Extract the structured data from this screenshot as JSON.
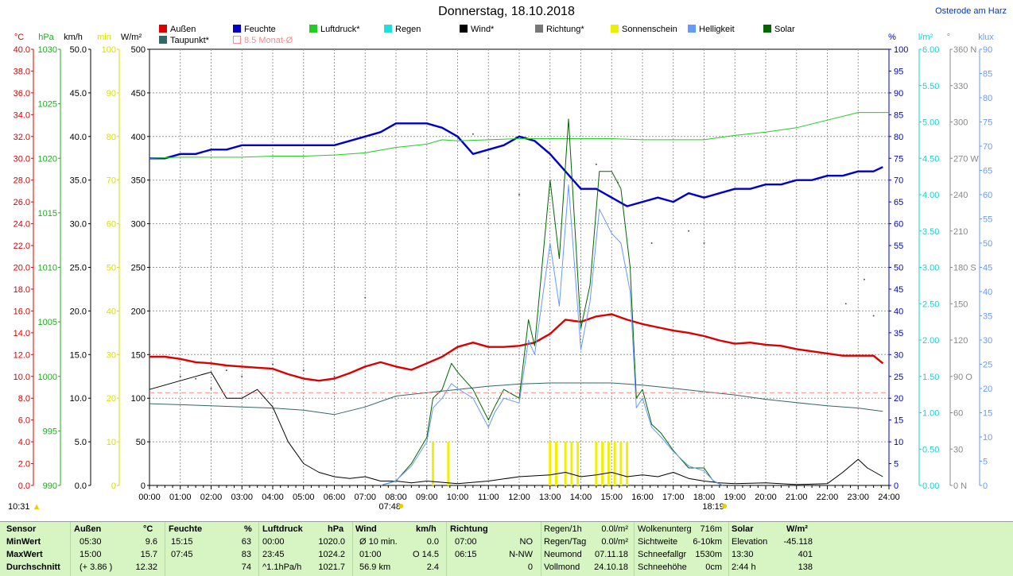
{
  "title": "Donnerstag, 18.10.2018",
  "location": "Osterode am Harz",
  "legend": [
    {
      "label": "Außen",
      "color": "#dd0000"
    },
    {
      "label": "Feuchte",
      "color": "#0000cc"
    },
    {
      "label": "Luftdruck*",
      "color": "#22cc22"
    },
    {
      "label": "Regen",
      "color": "#22dddd"
    },
    {
      "label": "Wind*",
      "color": "#000000"
    },
    {
      "label": "Richtung*",
      "color": "#777777"
    },
    {
      "label": "Sonnenschein",
      "color": "#eeee00"
    },
    {
      "label": "Helligkeit",
      "color": "#6699ff"
    },
    {
      "label": "Solar",
      "color": "#006600"
    },
    {
      "label": "Taupunkt*",
      "color": "#336666"
    },
    {
      "label": "8.5 Monat-Ø",
      "color": "#ff8888"
    }
  ],
  "axes_units": {
    "temp": "°C",
    "press": "hPa",
    "wind": "km/h",
    "sun": "min",
    "solar": "W/m²",
    "hum": "%",
    "rain": "l/m²",
    "dir": "°",
    "lux": "klux"
  },
  "axes": {
    "temp": [
      "40.0",
      "38.0",
      "36.0",
      "34.0",
      "32.0",
      "30.0",
      "28.0",
      "26.0",
      "24.0",
      "22.0",
      "20.0",
      "18.0",
      "16.0",
      "14.0",
      "12.0",
      "10.0",
      "8.0",
      "6.0",
      "4.0",
      "2.0",
      "0.0"
    ],
    "press": [
      "1030",
      "1025",
      "1020",
      "1015",
      "1010",
      "1005",
      "1000",
      "995",
      "990"
    ],
    "wind": [
      "50.0",
      "45.0",
      "40.0",
      "35.0",
      "30.0",
      "25.0",
      "20.0",
      "15.0",
      "10.0",
      "5.0",
      "0.0"
    ],
    "sun": [
      "100",
      "90",
      "80",
      "70",
      "60",
      "50",
      "40",
      "30",
      "20",
      "10",
      "0"
    ],
    "solar": [
      "500",
      "450",
      "400",
      "350",
      "300",
      "250",
      "200",
      "150",
      "100",
      "50",
      "0"
    ],
    "hum": [
      "100",
      "95",
      "90",
      "85",
      "80",
      "75",
      "70",
      "65",
      "60",
      "55",
      "50",
      "45",
      "40",
      "35",
      "30",
      "25",
      "20",
      "15",
      "10",
      "5",
      "0"
    ],
    "rain": [
      "6.00",
      "5.50",
      "5.00",
      "4.50",
      "4.00",
      "3.50",
      "3.00",
      "2.50",
      "2.00",
      "1.50",
      "1.00",
      "0.50",
      "0.00"
    ],
    "dir": [
      "360 N",
      "330",
      "300",
      "270 W",
      "240",
      "210",
      "180 S",
      "150",
      "120",
      "90 O",
      "60",
      "30",
      "0 N"
    ],
    "lux": [
      "90",
      "85",
      "80",
      "75",
      "70",
      "65",
      "60",
      "55",
      "50",
      "45",
      "40",
      "35",
      "30",
      "25",
      "20",
      "15",
      "10",
      "5",
      "0"
    ]
  },
  "x_ticks": [
    "00:00",
    "01:00",
    "02:00",
    "03:00",
    "04:00",
    "05:00",
    "06:00",
    "07:00",
    "08:00",
    "09:00",
    "10:00",
    "11:00",
    "12:00",
    "13:00",
    "14:00",
    "15:00",
    "16:00",
    "17:00",
    "18:00",
    "19:00",
    "20:00",
    "21:00",
    "22:00",
    "23:00",
    "24:00"
  ],
  "sunrise": "07:48",
  "sunset": "18:19",
  "daylength": "10:31",
  "chart_data": {
    "type": "line",
    "xlim": [
      0,
      24
    ],
    "series": [
      {
        "name": "Außen",
        "axis": "temp",
        "color": "#dd0000",
        "x": [
          0,
          0.5,
          1,
          1.5,
          2,
          2.5,
          3,
          3.5,
          4,
          4.5,
          5,
          5.5,
          6,
          6.5,
          7,
          7.5,
          8,
          8.5,
          9,
          9.5,
          10,
          10.5,
          11,
          11.5,
          12,
          12.5,
          13,
          13.5,
          14,
          14.5,
          15,
          15.5,
          16,
          16.5,
          17,
          17.5,
          18,
          18.5,
          19,
          19.5,
          20,
          20.5,
          21,
          21.5,
          22,
          22.5,
          23,
          23.5,
          23.8
        ],
        "y": [
          11.8,
          11.8,
          11.6,
          11.3,
          11.2,
          11.0,
          10.9,
          10.8,
          10.7,
          10.2,
          9.8,
          9.6,
          9.8,
          10.3,
          10.9,
          11.3,
          10.9,
          10.6,
          11.2,
          11.8,
          12.7,
          13.1,
          12.7,
          12.7,
          12.8,
          13.1,
          13.9,
          15.2,
          15.0,
          15.5,
          15.7,
          15.2,
          14.8,
          14.5,
          14.2,
          14.0,
          13.7,
          13.3,
          13.0,
          13.1,
          12.9,
          12.8,
          12.5,
          12.3,
          12.1,
          11.9,
          11.9,
          11.9,
          11.2
        ]
      },
      {
        "name": "Feuchte",
        "axis": "hum",
        "color": "#0000cc",
        "x": [
          0,
          0.5,
          1,
          1.5,
          2,
          2.5,
          3,
          3.5,
          4,
          4.5,
          5,
          5.5,
          6,
          6.5,
          7,
          7.5,
          8,
          8.5,
          9,
          9.5,
          10,
          10.5,
          11,
          11.5,
          12,
          12.5,
          13,
          13.5,
          14,
          14.5,
          15,
          15.5,
          16,
          16.5,
          17,
          17.5,
          18,
          18.5,
          19,
          19.5,
          20,
          20.5,
          21,
          21.5,
          22,
          22.5,
          23,
          23.5,
          23.8
        ],
        "y": [
          75,
          75,
          76,
          76,
          77,
          77,
          78,
          78,
          78,
          78,
          78,
          78,
          78,
          79,
          80,
          81,
          83,
          83,
          83,
          82,
          80,
          76,
          77,
          78,
          80,
          79,
          76,
          72,
          68,
          68,
          66,
          64,
          65,
          66,
          65,
          67,
          66,
          67,
          68,
          68,
          69,
          69,
          70,
          70,
          71,
          71,
          72,
          72,
          73
        ]
      },
      {
        "name": "Luftdruck*",
        "axis": "press",
        "color": "#22cc22",
        "x": [
          0,
          1,
          2,
          3,
          4,
          5,
          6,
          7,
          8,
          9,
          9.5,
          10,
          11,
          12,
          13,
          14,
          15,
          16,
          17,
          18,
          19,
          20,
          21,
          22,
          23,
          24
        ],
        "y": [
          1020.0,
          1020.1,
          1020.1,
          1020.1,
          1020.2,
          1020.2,
          1020.3,
          1020.5,
          1021.0,
          1021.3,
          1021.7,
          1021.6,
          1021.7,
          1021.8,
          1021.8,
          1021.8,
          1021.8,
          1021.7,
          1021.7,
          1021.7,
          1022.1,
          1022.4,
          1022.8,
          1023.5,
          1024.2,
          1024.2
        ]
      },
      {
        "name": "Wind*",
        "axis": "wind",
        "color": "#000000",
        "x": [
          0,
          0.5,
          1,
          1.5,
          2,
          2.5,
          3,
          3.5,
          4,
          4.5,
          5,
          5.5,
          6,
          6.5,
          7,
          7.5,
          8,
          8.5,
          9,
          10,
          11,
          12,
          13,
          13.5,
          14,
          14.5,
          15,
          15.5,
          16,
          16.5,
          17,
          17.5,
          18,
          18.5,
          19,
          20,
          21,
          22,
          22.5,
          23,
          23.3,
          23.8
        ],
        "y": [
          11.0,
          11.5,
          12.0,
          12.5,
          13.0,
          10.0,
          10.0,
          11.0,
          9.0,
          5.0,
          2.5,
          1.5,
          1.0,
          0.8,
          1.0,
          0.5,
          0.5,
          0.3,
          0.5,
          0.2,
          0.5,
          1.0,
          1.2,
          1.5,
          1.0,
          1.2,
          1.5,
          1.0,
          1.2,
          1.0,
          1.5,
          0.8,
          0.5,
          0.3,
          0.2,
          0.3,
          0.1,
          0.2,
          1.5,
          3.0,
          2.0,
          1.0
        ]
      },
      {
        "name": "Taupunkt*",
        "axis": "temp",
        "color": "#336666",
        "x": [
          0,
          1,
          2,
          3,
          4,
          5,
          6,
          7,
          8,
          9,
          10,
          11,
          12,
          13,
          14,
          15,
          16,
          17,
          18,
          19,
          20,
          21,
          22,
          23,
          23.8
        ],
        "y": [
          7.5,
          7.4,
          7.3,
          7.2,
          7.1,
          6.9,
          6.5,
          7.2,
          8.2,
          8.5,
          8.8,
          9.1,
          9.3,
          9.4,
          9.4,
          9.4,
          9.2,
          8.9,
          8.6,
          8.3,
          7.9,
          7.6,
          7.3,
          7.1,
          6.8
        ]
      },
      {
        "name": "Solar",
        "axis": "solar",
        "color": "#006600",
        "x": [
          7.5,
          8,
          8.5,
          9,
          9.2,
          9.5,
          9.8,
          10,
          10.5,
          11,
          11.2,
          11.5,
          12,
          12.3,
          12.5,
          13,
          13.3,
          13.6,
          14,
          14.3,
          14.6,
          15,
          15.3,
          15.6,
          15.8,
          16,
          16.3,
          16.6,
          17,
          17.5,
          18,
          18.3,
          18.6
        ],
        "y": [
          0,
          5,
          25,
          55,
          100,
          110,
          140,
          130,
          110,
          75,
          90,
          110,
          100,
          190,
          160,
          350,
          260,
          420,
          180,
          230,
          360,
          360,
          340,
          250,
          100,
          110,
          70,
          60,
          40,
          20,
          20,
          5,
          0
        ]
      },
      {
        "name": "Helligkeit",
        "axis": "lux",
        "color": "#6699ff",
        "x": [
          7.5,
          8,
          8.5,
          9,
          9.2,
          9.5,
          9.8,
          10,
          10.5,
          11,
          11.2,
          11.5,
          12,
          12.3,
          12.5,
          13,
          13.3,
          13.6,
          14,
          14.3,
          14.6,
          15,
          15.3,
          15.6,
          15.8,
          16,
          16.3,
          16.6,
          17,
          17.5,
          18,
          18.3,
          18.6
        ],
        "y": [
          0,
          1,
          4,
          9,
          16,
          18,
          21,
          20,
          18,
          12,
          15,
          18,
          17,
          30,
          27,
          50,
          37,
          62,
          28,
          38,
          57,
          52,
          50,
          40,
          16,
          18,
          12,
          10,
          7,
          4,
          3,
          1,
          0
        ]
      },
      {
        "name": "8.5 Monat-Ø",
        "axis": "temp",
        "color": "#ff8888",
        "dashed": true,
        "x": [
          0,
          24
        ],
        "y": [
          8.5,
          8.5
        ]
      }
    ],
    "sunshine_bars_x": [
      9.2,
      9.7,
      13.0,
      13.2,
      13.5,
      13.7,
      13.9,
      14.5,
      14.7,
      14.9,
      15.1,
      15.3,
      15.5
    ],
    "sunshine_bar_minutes": 10,
    "wind_direction": {
      "x": [
        1,
        1.5,
        2,
        2.5,
        3,
        4,
        5,
        6,
        7.0,
        10.5,
        11,
        12,
        14.5,
        15.2,
        16.3,
        17.5,
        18,
        22.6,
        23.2,
        23.5
      ],
      "deg": [
        90,
        88,
        80,
        95,
        90,
        100,
        95,
        90,
        155,
        290,
        270,
        240,
        265,
        250,
        200,
        210,
        200,
        150,
        170,
        140
      ]
    }
  },
  "footer": {
    "h": {
      "sensor": "Sensor",
      "aussen": "Außen",
      "aussen_u": "°C",
      "feuchte": "Feuchte",
      "feuchte_u": "%",
      "luftdruck": "Luftdruck",
      "luftdruck_u": "hPa",
      "wind": "Wind",
      "wind_u": "km/h",
      "richtung": "Richtung",
      "solar": "Solar",
      "solar_u": "W/m²"
    },
    "rows": [
      {
        "label": "MinWert",
        "a_t": "05:30",
        "a_v": "9.6",
        "f_t": "15:15",
        "f_v": "63",
        "l_t": "00:00",
        "l_v": "1020.0",
        "w_t": "Ø 10 min.",
        "w_v": "0.0",
        "r_t": "07:00",
        "r_v": "NO"
      },
      {
        "label": "MaxWert",
        "a_t": "15:00",
        "a_v": "15.7",
        "f_t": "07:45",
        "f_v": "83",
        "l_t": "23:45",
        "l_v": "1024.2",
        "w_t": "01:00",
        "w_v": "O 14.5",
        "r_t": "06:15",
        "r_v": "N-NW"
      },
      {
        "label": "Durchschnitt",
        "a_t": "(+ 3.86 )",
        "a_v": "12.32",
        "f_t": "",
        "f_v": "74",
        "l_t": "^1.1hPa/h",
        "l_v": "1021.7",
        "w_t": "56.9 km",
        "w_v": "2.4",
        "r_t": "",
        "r_v": "0"
      }
    ],
    "extra": [
      {
        "k": "Regen/1h",
        "v": "0.0l/m²",
        "k2": "Wolkenunterg",
        "v2": "716m",
        "k3": "Elevation",
        "v3": "-45.118"
      },
      {
        "k": "Regen/Tag",
        "v": "0.0l/m²",
        "k2": "Sichtweite",
        "v2": "6-10km",
        "k3": "13:30",
        "v3": "401"
      },
      {
        "k": "Neumond",
        "v": "07.11.18",
        "k2": "Schneefallgr",
        "v2": "1530m",
        "k3": "2:44 h",
        "v3": "138"
      },
      {
        "k": "Vollmond",
        "v": "24.10.18",
        "k2": "Schneehöhe",
        "v2": "0cm",
        "k3": "",
        "v3": ""
      }
    ]
  }
}
